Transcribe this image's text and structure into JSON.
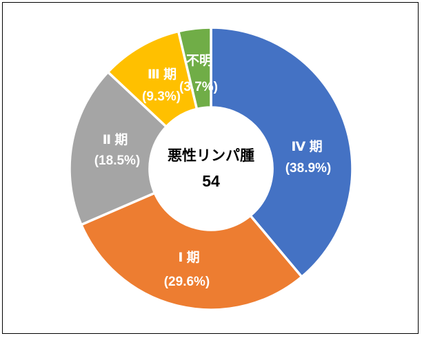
{
  "window": {
    "background_color": "#FFFFFF",
    "frame_border_color": "#000000"
  },
  "chart_data": {
    "type": "pie",
    "subtype": "donut",
    "title": "",
    "center_label": "悪性リンパ腫",
    "center_value": "54",
    "direction": "clockwise",
    "start_angle_deg": 0,
    "legend": "none",
    "label_text_color": "#FFFFFF",
    "center_text_color": "#000000",
    "separator_color": "#FFFFFF",
    "segments": [
      {
        "label": "Ⅳ 期",
        "pct_label": "(38.9%)",
        "percent": 38.9,
        "color": "#4472C4"
      },
      {
        "label": "Ⅰ 期",
        "pct_label": "(29.6%)",
        "percent": 29.6,
        "color": "#ED7D31"
      },
      {
        "label": "Ⅱ 期",
        "pct_label": "(18.5%)",
        "percent": 18.5,
        "color": "#A5A5A5"
      },
      {
        "label": "Ⅲ 期",
        "pct_label": "(9.3%)",
        "percent": 9.3,
        "color": "#FFC000"
      },
      {
        "label": "不明",
        "pct_label": "(3.7%)",
        "percent": 3.7,
        "color": "#70AD47"
      }
    ]
  }
}
